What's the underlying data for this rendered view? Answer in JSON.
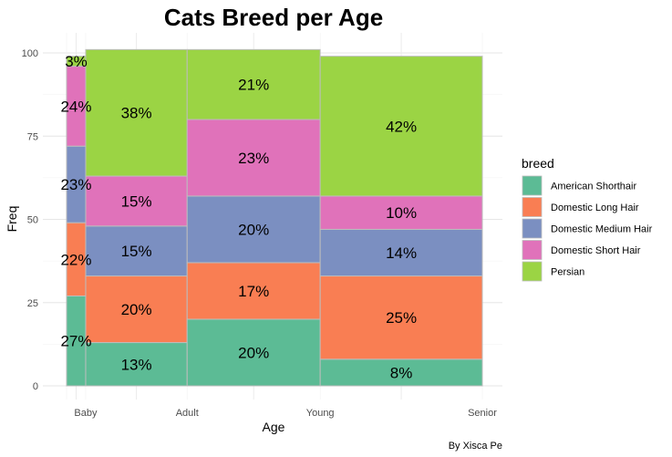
{
  "chart_data": {
    "type": "mosaic",
    "title": "Cats Breed per Age",
    "xlabel": "Age",
    "ylabel": "Freq",
    "caption": "By Xisca Pe",
    "ylim": [
      0,
      100
    ],
    "yticks": [
      0,
      25,
      50,
      75,
      100
    ],
    "grid": true,
    "legend": {
      "title": "breed",
      "placement": "right"
    },
    "categories": [
      "Baby",
      "Adult",
      "Young",
      "Senior"
    ],
    "category_widths": [
      0.046,
      0.244,
      0.32,
      0.39
    ],
    "series": [
      {
        "name": "American Shorthair",
        "color": "#5cbb95",
        "values": [
          27,
          13,
          20,
          8
        ]
      },
      {
        "name": "Domestic Long Hair",
        "color": "#f97e53",
        "values": [
          22,
          20,
          17,
          25
        ]
      },
      {
        "name": "Domestic Medium Hair",
        "color": "#7b8fc1",
        "values": [
          23,
          15,
          20,
          14
        ]
      },
      {
        "name": "Domestic Short Hair",
        "color": "#e072ba",
        "values": [
          24,
          15,
          23,
          10
        ]
      },
      {
        "name": "Persian",
        "color": "#9bd444",
        "values": [
          3,
          38,
          21,
          42
        ]
      }
    ],
    "segment_labels": [
      [
        "27%",
        "22%",
        "23%",
        "24%",
        "3%"
      ],
      [
        "13%",
        "20%",
        "15%",
        "15%",
        "38%"
      ],
      [
        "20%",
        "17%",
        "20%",
        "23%",
        "21%"
      ],
      [
        "8%",
        "25%",
        "14%",
        "10%",
        "42%"
      ]
    ]
  }
}
